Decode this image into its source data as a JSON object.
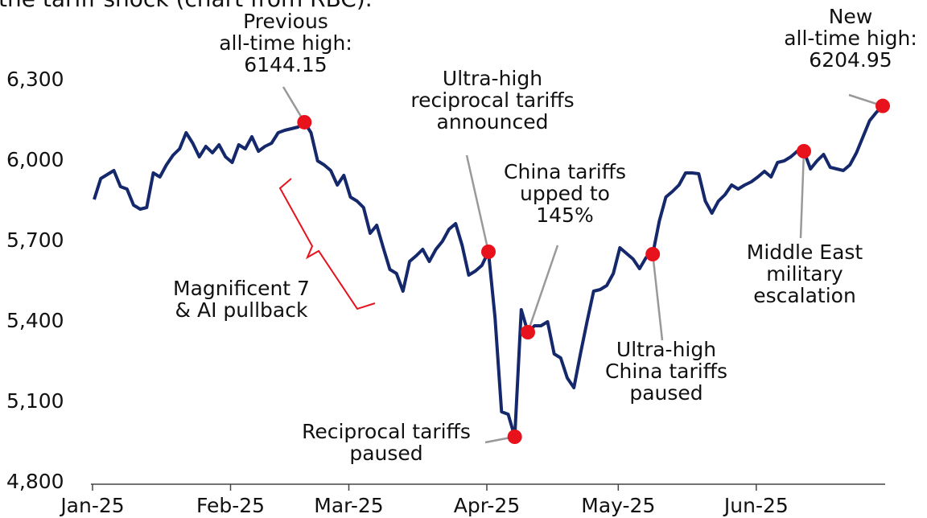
{
  "chart_data": {
    "type": "line",
    "caption": "the tariff shock (chart from RBC).",
    "color": "#14286b",
    "highlight_color": "#e8121c",
    "categories": [
      "Jan-25",
      null,
      null,
      null,
      null,
      null,
      null,
      null,
      null,
      null,
      null,
      null,
      null,
      null,
      null,
      null,
      null,
      null,
      null,
      null,
      null,
      "Feb-25",
      null,
      null,
      null,
      null,
      null,
      null,
      null,
      null,
      null,
      null,
      null,
      null,
      null,
      null,
      null,
      null,
      null,
      "Mar-25",
      null,
      null,
      null,
      null,
      null,
      null,
      null,
      null,
      null,
      null,
      null,
      null,
      null,
      null,
      null,
      null,
      null,
      null,
      null,
      null,
      "Apr-25",
      null,
      null,
      null,
      null,
      null,
      null,
      null,
      null,
      null,
      null,
      null,
      null,
      null,
      null,
      null,
      null,
      null,
      null,
      null,
      "May-25",
      null,
      null,
      null,
      null,
      null,
      null,
      null,
      null,
      null,
      null,
      null,
      null,
      null,
      null,
      null,
      null,
      null,
      null,
      null,
      null,
      "Jun-25",
      null,
      null,
      null,
      null,
      null,
      null,
      null,
      null,
      null,
      null,
      null,
      null,
      null,
      null,
      null,
      null,
      null,
      null,
      null
    ],
    "values": [
      5856,
      5934,
      5949,
      5964,
      5904,
      5895,
      5835,
      5820,
      5826,
      5955,
      5940,
      5985,
      6021,
      6045,
      6105,
      6066,
      6015,
      6054,
      6030,
      6060,
      6015,
      5994,
      6060,
      6045,
      6090,
      6036,
      6054,
      6066,
      6105,
      6114,
      6120,
      6126,
      6144.15,
      6105,
      6000,
      5985,
      5964,
      5910,
      5946,
      5865,
      5850,
      5826,
      5730,
      5760,
      5676,
      5595,
      5580,
      5514,
      5625,
      5646,
      5670,
      5625,
      5670,
      5700,
      5745,
      5766,
      5685,
      5574,
      5589,
      5610,
      5661,
      5415,
      5064,
      5055,
      4971,
      5445,
      5361,
      5385,
      5385,
      5400,
      5280,
      5265,
      5190,
      5154,
      5280,
      5400,
      5514,
      5520,
      5535,
      5580,
      5676,
      5655,
      5634,
      5598,
      5640,
      5652,
      5775,
      5865,
      5886,
      5910,
      5955,
      5955,
      5952,
      5850,
      5805,
      5850,
      5874,
      5910,
      5895,
      5910,
      5922,
      5940,
      5961,
      5940,
      5994,
      6000,
      6015,
      6036,
      6036,
      5970,
      6000,
      6024,
      5976,
      5970,
      5964,
      5985,
      6030,
      6090,
      6150,
      6180,
      6204.95
    ],
    "ylim": [
      4800,
      6300
    ],
    "yticks": [
      {
        "value": 4800,
        "label": "4,800"
      },
      {
        "value": 5100,
        "label": "5,100"
      },
      {
        "value": 5400,
        "label": "5,400"
      },
      {
        "value": 5700,
        "label": "5,700"
      },
      {
        "value": 6000,
        "label": "6,000"
      },
      {
        "value": 6300,
        "label": "6,300"
      }
    ],
    "annotations": [
      {
        "text": [
          "Previous",
          "all-time high:",
          "6144.15"
        ]
      },
      {
        "text": [
          "Ultra-high",
          "reciprocal tariffs",
          "announced"
        ]
      },
      {
        "text": [
          "China tariffs",
          "upped to",
          "145%"
        ]
      },
      {
        "text": [
          "Reciprocal tariffs",
          "paused"
        ]
      },
      {
        "text": [
          "Ultra-high",
          "China tariffs",
          "paused"
        ]
      },
      {
        "text": [
          "Middle East",
          "military",
          "escalation"
        ]
      },
      {
        "text": [
          "New",
          "all-time high:",
          "6204.95"
        ]
      },
      {
        "text": [
          "Magnificent 7",
          "& AI pullback"
        ]
      }
    ]
  }
}
